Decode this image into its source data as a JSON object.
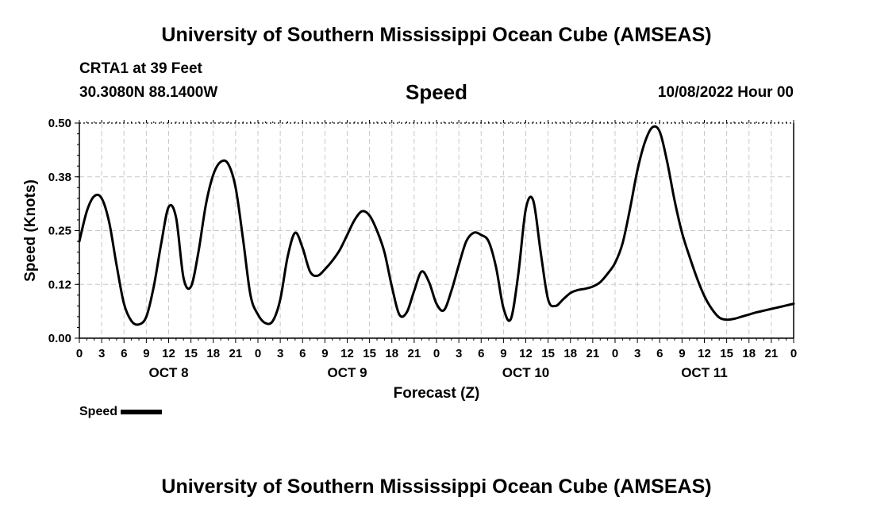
{
  "header": {
    "title": "University of Southern Mississippi Ocean Cube (AMSEAS)",
    "station": "CRTA1 at 39 Feet",
    "coordinates": "30.3080N  88.1400W",
    "chart_title": "Speed",
    "run_date": "10/08/2022 Hour 00"
  },
  "footer": {
    "title": "University of Southern Mississippi Ocean Cube (AMSEAS)"
  },
  "legend": {
    "label": "Speed"
  },
  "chart_data": {
    "type": "line",
    "title": "Speed",
    "xlabel": "Forecast (Z)",
    "ylabel": "Speed (Knots)",
    "xlim": [
      0,
      96
    ],
    "ylim": [
      0,
      0.5
    ],
    "grid": true,
    "x_tick_labels": [
      "0",
      "3",
      "6",
      "9",
      "12",
      "15",
      "18",
      "21",
      "0",
      "3",
      "6",
      "9",
      "12",
      "15",
      "18",
      "21",
      "0",
      "3",
      "6",
      "9",
      "12",
      "15",
      "18",
      "21",
      "0",
      "3",
      "6",
      "9",
      "12",
      "15",
      "18",
      "21",
      "0"
    ],
    "y_tick_labels": [
      "0.00",
      "0.12",
      "0.25",
      "0.38",
      "0.50"
    ],
    "y_tick_values": [
      0,
      0.125,
      0.25,
      0.375,
      0.5
    ],
    "day_labels": [
      {
        "label": "OCT 8",
        "hour": 12
      },
      {
        "label": "OCT 9",
        "hour": 36
      },
      {
        "label": "OCT 10",
        "hour": 60
      },
      {
        "label": "OCT 11",
        "hour": 84
      }
    ],
    "series": [
      {
        "name": "Speed",
        "color": "#000000",
        "x": [
          0,
          1,
          2,
          3,
          4,
          5,
          6,
          7,
          8,
          9,
          10,
          11,
          12,
          13,
          14,
          15,
          16,
          17,
          18,
          19,
          20,
          21,
          22,
          23,
          24,
          25,
          26,
          27,
          28,
          29,
          30,
          31,
          32,
          33,
          34,
          35,
          36,
          37,
          38,
          39,
          40,
          41,
          42,
          43,
          44,
          45,
          46,
          47,
          48,
          49,
          50,
          51,
          52,
          53,
          54,
          55,
          56,
          57,
          58,
          59,
          60,
          61,
          62,
          63,
          64,
          65,
          66,
          67,
          68,
          69,
          70,
          71,
          72,
          73,
          74,
          75,
          76,
          77,
          78,
          79,
          80,
          81,
          82,
          83,
          84,
          85,
          86,
          87,
          88,
          89,
          90,
          91,
          92,
          93,
          94,
          95,
          96
        ],
        "values": [
          0.225,
          0.295,
          0.33,
          0.325,
          0.27,
          0.17,
          0.08,
          0.04,
          0.032,
          0.05,
          0.12,
          0.22,
          0.305,
          0.28,
          0.14,
          0.12,
          0.2,
          0.31,
          0.38,
          0.41,
          0.405,
          0.35,
          0.23,
          0.1,
          0.055,
          0.035,
          0.04,
          0.09,
          0.19,
          0.245,
          0.21,
          0.155,
          0.145,
          0.16,
          0.18,
          0.205,
          0.24,
          0.275,
          0.295,
          0.285,
          0.25,
          0.2,
          0.12,
          0.055,
          0.06,
          0.11,
          0.155,
          0.13,
          0.08,
          0.065,
          0.11,
          0.17,
          0.225,
          0.245,
          0.24,
          0.225,
          0.165,
          0.07,
          0.045,
          0.15,
          0.3,
          0.32,
          0.2,
          0.09,
          0.075,
          0.09,
          0.105,
          0.112,
          0.115,
          0.12,
          0.13,
          0.15,
          0.175,
          0.22,
          0.3,
          0.39,
          0.455,
          0.49,
          0.48,
          0.41,
          0.32,
          0.245,
          0.19,
          0.14,
          0.098,
          0.068,
          0.048,
          0.043,
          0.045,
          0.05,
          0.055,
          0.06,
          0.064,
          0.068,
          0.072,
          0.076,
          0.08
        ]
      }
    ]
  }
}
